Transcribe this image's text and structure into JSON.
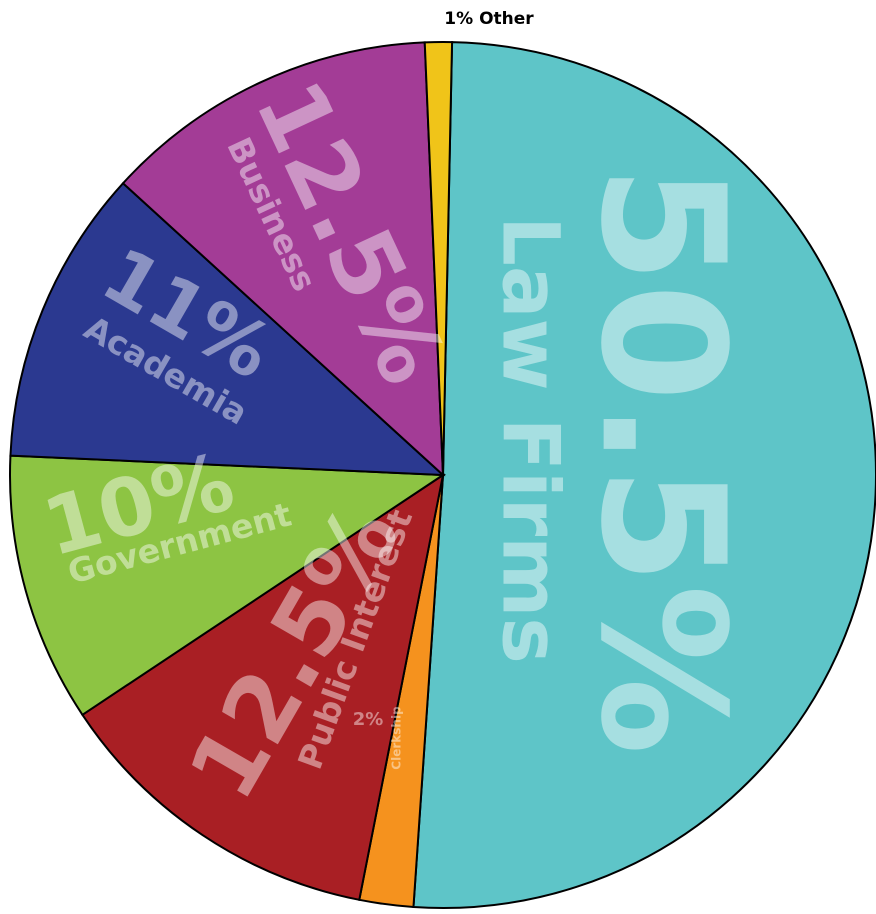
{
  "chart_data": {
    "type": "pie",
    "categories": [
      "Law Firms",
      "Clerkship",
      "Public Interest",
      "Government",
      "Academia",
      "Business",
      "Other"
    ],
    "values": [
      50.5,
      2,
      12.5,
      10,
      11,
      12.5,
      1
    ],
    "value_labels": [
      "50.5%",
      "2%",
      "12.5%",
      "10%",
      "11%",
      "12.5%",
      "1%"
    ],
    "colors": [
      "#5ec5c8",
      "#f5921e",
      "#a91f24",
      "#8dc443",
      "#2b3990",
      "#a33c96",
      "#f0c419"
    ]
  }
}
